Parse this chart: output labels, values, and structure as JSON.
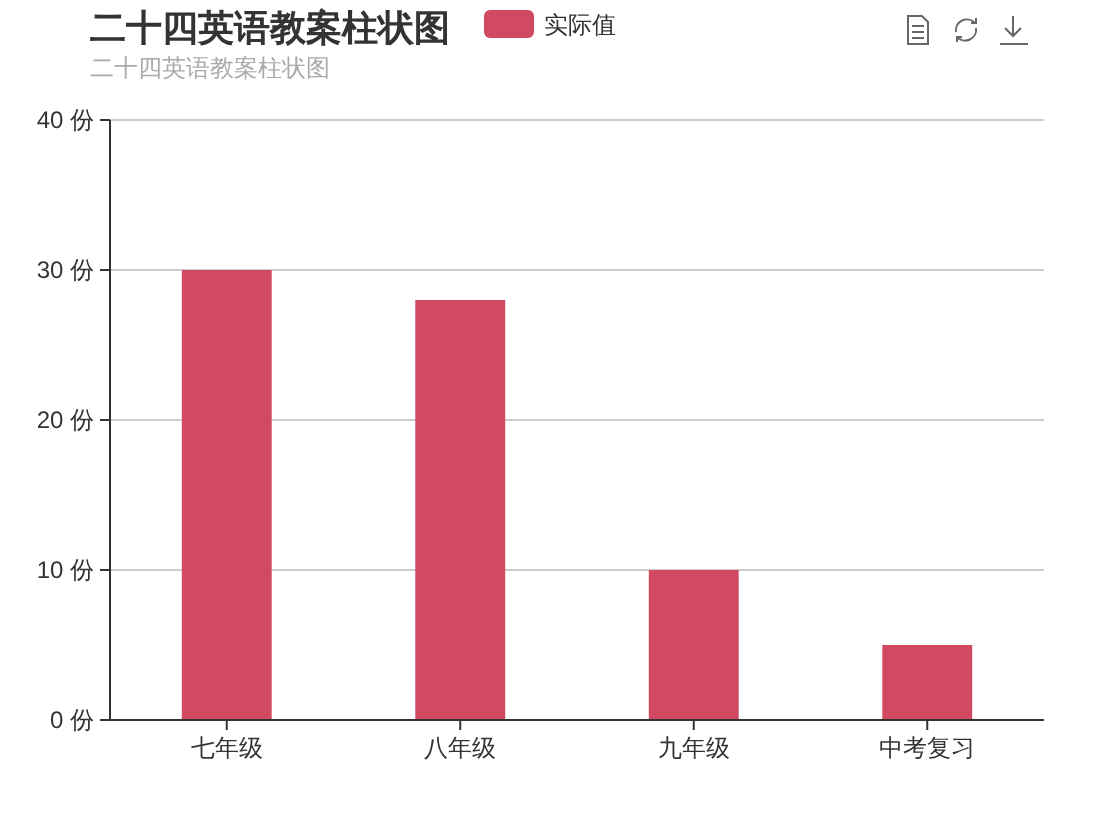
{
  "chart_data": {
    "type": "bar",
    "title": "二十四英语教案柱状图",
    "subtitle": "二十四英语教案柱状图",
    "categories": [
      "七年级",
      "八年级",
      "九年级",
      "中考复习"
    ],
    "series": [
      {
        "name": "实际值",
        "color": "#d14a61",
        "values": [
          30,
          28,
          10,
          5
        ]
      }
    ],
    "ylim": [
      0,
      40
    ],
    "yticks": [
      {
        "value": 0,
        "label": "0 份"
      },
      {
        "value": 10,
        "label": "10 份"
      },
      {
        "value": 20,
        "label": "20 份"
      },
      {
        "value": 30,
        "label": "30 份"
      },
      {
        "value": 40,
        "label": "40 份"
      }
    ],
    "grid": "y",
    "legend": "top"
  }
}
